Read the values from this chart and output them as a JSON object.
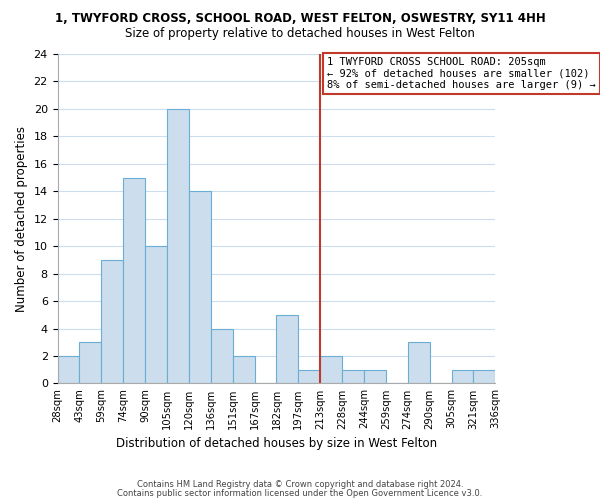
{
  "title": "1, TWYFORD CROSS, SCHOOL ROAD, WEST FELTON, OSWESTRY, SY11 4HH",
  "subtitle": "Size of property relative to detached houses in West Felton",
  "xlabel": "Distribution of detached houses by size in West Felton",
  "ylabel": "Number of detached properties",
  "bar_color": "#ccdded",
  "bar_edge_color": "#6aaed6",
  "bin_edges": [
    "28sqm",
    "43sqm",
    "59sqm",
    "74sqm",
    "90sqm",
    "105sqm",
    "120sqm",
    "136sqm",
    "151sqm",
    "167sqm",
    "182sqm",
    "197sqm",
    "213sqm",
    "228sqm",
    "244sqm",
    "259sqm",
    "274sqm",
    "290sqm",
    "305sqm",
    "321sqm",
    "336sqm"
  ],
  "bar_heights": [
    2,
    3,
    9,
    15,
    10,
    20,
    14,
    4,
    2,
    0,
    5,
    1,
    2,
    1,
    1,
    0,
    3,
    0,
    1,
    1
  ],
  "ylim": [
    0,
    24
  ],
  "yticks": [
    0,
    2,
    4,
    6,
    8,
    10,
    12,
    14,
    16,
    18,
    20,
    22,
    24
  ],
  "vline_position": 11.5,
  "vline_color": "#c0392b",
  "annotation_text": "1 TWYFORD CROSS SCHOOL ROAD: 205sqm\n← 92% of detached houses are smaller (102)\n8% of semi-detached houses are larger (9) →",
  "annotation_box_color": "#ffffff",
  "annotation_box_edgecolor": "#c0392b",
  "footer1": "Contains HM Land Registry data © Crown copyright and database right 2024.",
  "footer2": "Contains public sector information licensed under the Open Government Licence v3.0.",
  "background_color": "#ffffff",
  "grid_color": "#ccddee"
}
